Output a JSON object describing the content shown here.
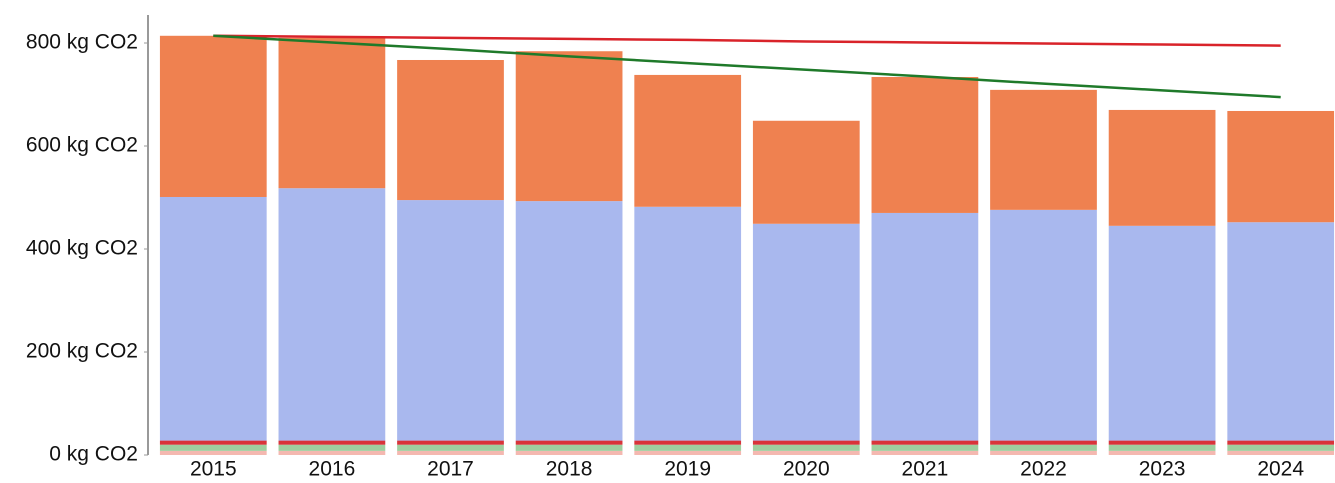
{
  "chart_data": {
    "type": "bar",
    "stacked": true,
    "categories": [
      "2015",
      "2016",
      "2017",
      "2018",
      "2019",
      "2020",
      "2021",
      "2022",
      "2023",
      "2024"
    ],
    "series": [
      {
        "color": "#f4b8b0",
        "values": [
          8,
          8,
          8,
          8,
          8,
          8,
          8,
          8,
          8,
          8
        ]
      },
      {
        "color": "#9fcf9f",
        "values": [
          12,
          12,
          12,
          12,
          12,
          12,
          12,
          12,
          12,
          12
        ]
      },
      {
        "color": "#d9343a",
        "values": [
          8,
          8,
          8,
          8,
          8,
          8,
          8,
          8,
          8,
          8
        ]
      },
      {
        "color": "#a9b8ee",
        "values": [
          473,
          490,
          467,
          465,
          454,
          421,
          442,
          448,
          417,
          424
        ]
      },
      {
        "color": "#ef8150",
        "values": [
          313,
          292,
          272,
          291,
          256,
          200,
          264,
          233,
          225,
          216
        ]
      },
      {
        "type": "line",
        "color": "#d9232a",
        "values": [
          814,
          812,
          810,
          808,
          806,
          803,
          801,
          799,
          797,
          795
        ]
      },
      {
        "type": "line",
        "color": "#1f7a2a",
        "values": [
          814,
          801,
          788,
          774,
          761,
          748,
          735,
          721,
          708,
          695
        ]
      }
    ],
    "ylim": [
      0,
      850
    ],
    "yticks": [
      {
        "value": 0,
        "label": "0 kg CO2"
      },
      {
        "value": 200,
        "label": "200 kg CO2"
      },
      {
        "value": 400,
        "label": "400 kg CO2"
      },
      {
        "value": 600,
        "label": "600 kg CO2"
      },
      {
        "value": 800,
        "label": "800 kg CO2"
      }
    ],
    "grid": false
  }
}
